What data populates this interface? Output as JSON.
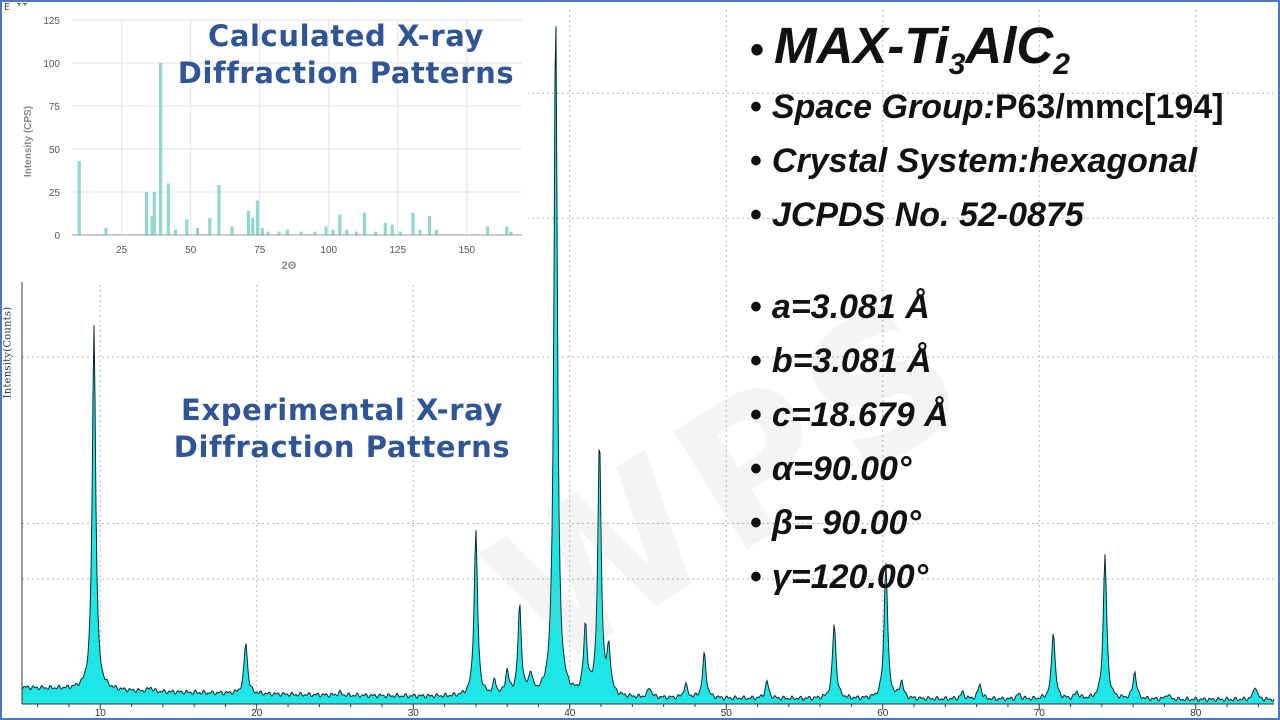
{
  "page": {
    "corner_mark": "E II",
    "watermark": "WPS"
  },
  "titles": {
    "calculated": "Calculated X-ray Diffraction Patterns",
    "experimental": "Experimental X-ray Diffraction Patterns"
  },
  "info": {
    "heading": {
      "prefix": "MAX-Ti",
      "sub1": "3",
      "mid": "AlC",
      "sub2": "2"
    },
    "space_group": {
      "label": "Space Group:",
      "value": "P63/mmc[194]"
    },
    "crystal_system": "Crystal System:hexagonal",
    "jcpds": "JCPDS No. 52-0875",
    "a": "a=3.081 Å",
    "b": "b=3.081 Å",
    "c": "c=18.679 Å",
    "alpha": "α=90.00°",
    "beta": "β= 90.00°",
    "gamma": "γ=120.00°"
  },
  "colors": {
    "experimental_fill": "#1ee6e6",
    "experimental_line": "#0a2a2a",
    "calculated_bars": "#8fd8ce",
    "title_blue": "#2f5597",
    "frame_blue": "#4a78c2"
  },
  "chart_data": [
    {
      "type": "area",
      "name": "experimental",
      "title": "Experimental X-ray Diffraction Patterns",
      "ylabel": "Intensity(Counts)",
      "xlabel": "",
      "xlim": [
        5,
        85
      ],
      "ylim": [
        0,
        100
      ],
      "xticks": [
        10,
        20,
        30,
        40,
        50,
        60,
        70,
        80
      ],
      "grid": true,
      "baseline": 1.8,
      "peaks": [
        {
          "x": 9.6,
          "h": 53
        },
        {
          "x": 13.2,
          "h": 0.6
        },
        {
          "x": 19.3,
          "h": 7.5
        },
        {
          "x": 25.3,
          "h": 0.4
        },
        {
          "x": 34.0,
          "h": 24
        },
        {
          "x": 35.2,
          "h": 2.0
        },
        {
          "x": 36.0,
          "h": 3.5
        },
        {
          "x": 36.8,
          "h": 13
        },
        {
          "x": 37.5,
          "h": 3.0
        },
        {
          "x": 39.1,
          "h": 100
        },
        {
          "x": 41.0,
          "h": 10
        },
        {
          "x": 41.9,
          "h": 37
        },
        {
          "x": 42.5,
          "h": 6.5
        },
        {
          "x": 45.1,
          "h": 1.5
        },
        {
          "x": 47.4,
          "h": 2.0
        },
        {
          "x": 48.6,
          "h": 6.5
        },
        {
          "x": 52.6,
          "h": 2.5
        },
        {
          "x": 56.9,
          "h": 11
        },
        {
          "x": 60.2,
          "h": 20
        },
        {
          "x": 61.2,
          "h": 2.5
        },
        {
          "x": 65.1,
          "h": 1.0
        },
        {
          "x": 66.2,
          "h": 2.2
        },
        {
          "x": 68.7,
          "h": 0.8
        },
        {
          "x": 70.9,
          "h": 10
        },
        {
          "x": 72.4,
          "h": 1.0
        },
        {
          "x": 74.2,
          "h": 21
        },
        {
          "x": 76.1,
          "h": 4.0
        },
        {
          "x": 78.2,
          "h": 0.8
        },
        {
          "x": 83.8,
          "h": 2.0
        }
      ]
    },
    {
      "type": "bar",
      "name": "calculated",
      "title": "Calculated X-ray Diffraction Patterns",
      "xlabel": "2Θ",
      "ylabel": "Intensity (CPS)",
      "xlim": [
        7,
        170
      ],
      "ylim": [
        0,
        125
      ],
      "xticks": [
        25,
        50,
        75,
        100,
        125,
        150
      ],
      "yticks": [
        0,
        25,
        50,
        75,
        100,
        125
      ],
      "grid": true,
      "bars": [
        {
          "x": 9.6,
          "y": 43
        },
        {
          "x": 19.3,
          "y": 4
        },
        {
          "x": 34.0,
          "y": 25
        },
        {
          "x": 36.0,
          "y": 11
        },
        {
          "x": 36.8,
          "y": 25
        },
        {
          "x": 39.1,
          "y": 100
        },
        {
          "x": 41.9,
          "y": 30
        },
        {
          "x": 44.5,
          "y": 3
        },
        {
          "x": 48.6,
          "y": 9
        },
        {
          "x": 52.5,
          "y": 4
        },
        {
          "x": 56.9,
          "y": 10
        },
        {
          "x": 60.2,
          "y": 29
        },
        {
          "x": 65.0,
          "y": 5
        },
        {
          "x": 70.9,
          "y": 14
        },
        {
          "x": 72.5,
          "y": 10
        },
        {
          "x": 74.2,
          "y": 20
        },
        {
          "x": 76.0,
          "y": 4
        },
        {
          "x": 78.0,
          "y": 2
        },
        {
          "x": 82.0,
          "y": 2
        },
        {
          "x": 85.0,
          "y": 3
        },
        {
          "x": 90.0,
          "y": 2
        },
        {
          "x": 95.0,
          "y": 2
        },
        {
          "x": 99.0,
          "y": 5
        },
        {
          "x": 101.5,
          "y": 3
        },
        {
          "x": 104.0,
          "y": 12
        },
        {
          "x": 106.5,
          "y": 3
        },
        {
          "x": 110.0,
          "y": 2
        },
        {
          "x": 113.0,
          "y": 13
        },
        {
          "x": 117.0,
          "y": 2
        },
        {
          "x": 120.5,
          "y": 7
        },
        {
          "x": 123.0,
          "y": 6
        },
        {
          "x": 126.0,
          "y": 2
        },
        {
          "x": 130.5,
          "y": 13
        },
        {
          "x": 133.0,
          "y": 3
        },
        {
          "x": 136.5,
          "y": 11
        },
        {
          "x": 139.0,
          "y": 3
        },
        {
          "x": 157.5,
          "y": 5
        },
        {
          "x": 164.5,
          "y": 5
        },
        {
          "x": 166.0,
          "y": 2
        }
      ]
    }
  ]
}
